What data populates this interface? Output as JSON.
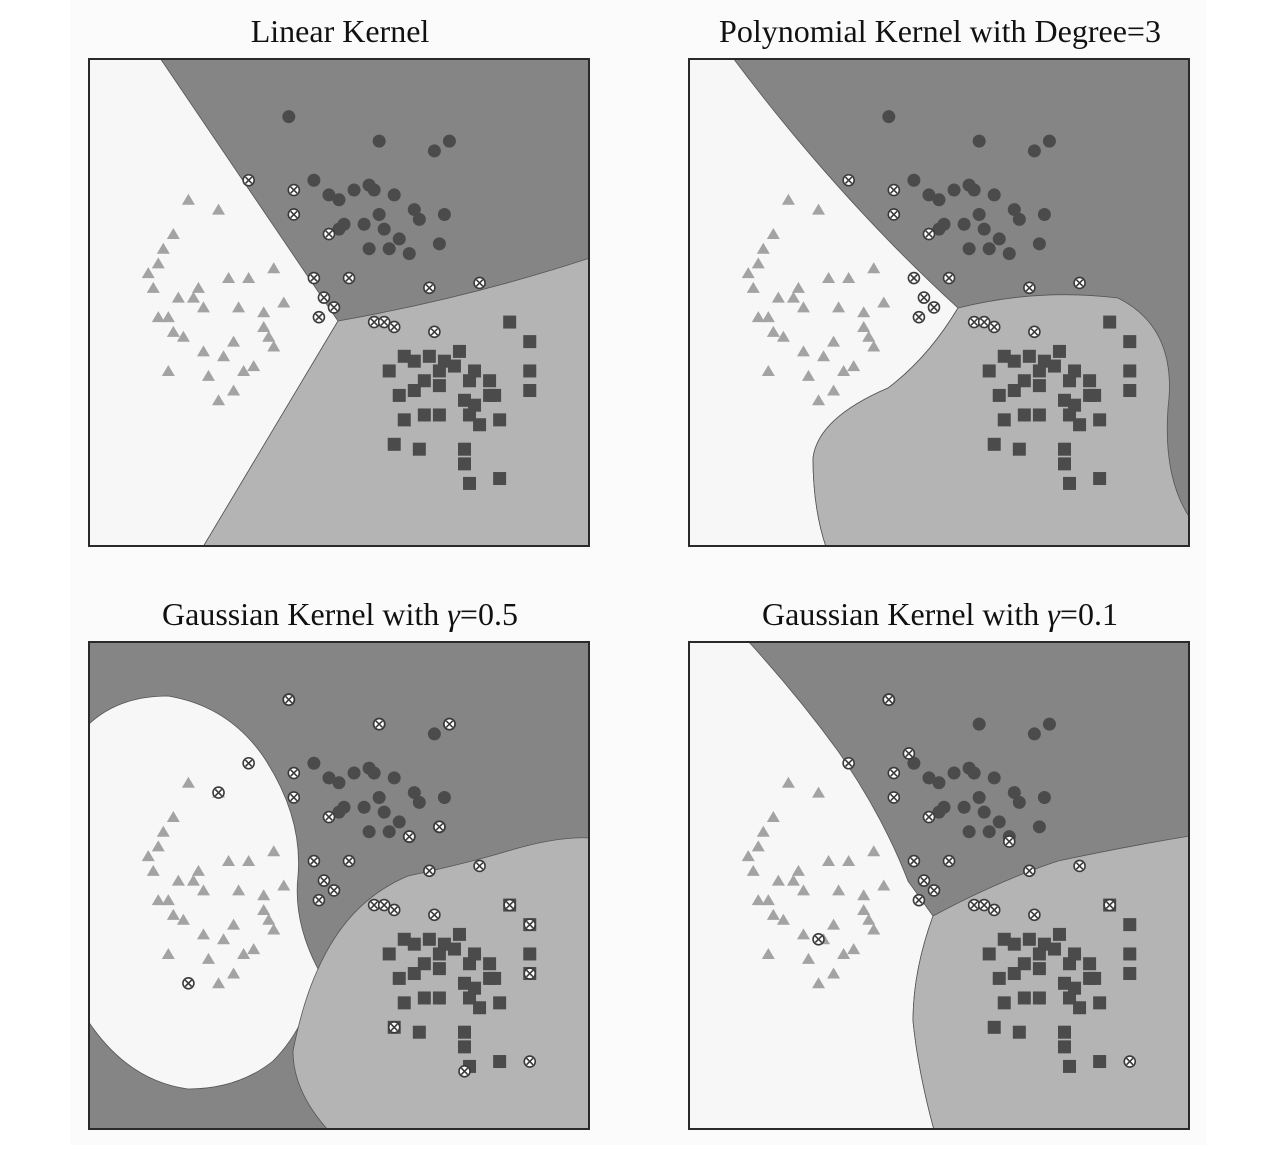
{
  "colors": {
    "region_triangle": "#f7f7f7",
    "region_circle": "#858585",
    "region_square": "#b4b4b4",
    "marker_triangle": "#a3a3a3",
    "marker_circle": "#4b4b4b",
    "marker_square": "#4b4b4b",
    "frame": "#2a2a2a"
  },
  "chart_data": [
    {
      "type": "scatter",
      "title": "Linear Kernel",
      "title_prefix": "Linear Kernel",
      "title_symbol": "",
      "title_suffix": "",
      "regions": "linear",
      "xlim": [
        0,
        10
      ],
      "ylim": [
        0,
        10
      ],
      "grid": false,
      "series": [
        {
          "class": "triangle",
          "x": [
            2.0,
            2.6,
            1.5,
            1.7,
            1.4,
            1.2,
            1.3,
            1.4,
            1.6,
            1.8,
            2.1,
            2.2,
            2.3,
            1.9,
            1.7,
            2.8,
            3.2,
            3.0,
            3.5,
            3.6,
            3.5,
            2.3,
            2.7,
            2.9,
            3.3,
            3.7,
            3.1,
            2.4,
            2.6,
            1.6,
            2.9,
            3.9,
            3.7
          ],
          "y": [
            7.1,
            6.9,
            6.1,
            6.4,
            5.8,
            5.6,
            5.3,
            4.7,
            4.7,
            5.1,
            5.1,
            5.3,
            4.9,
            4.3,
            4.4,
            5.5,
            5.5,
            4.9,
            4.8,
            4.3,
            4.5,
            4.0,
            3.9,
            4.2,
            3.7,
            4.1,
            3.6,
            3.5,
            3.0,
            3.6,
            3.2,
            5.0,
            5.7
          ]
        },
        {
          "class": "circle",
          "x": [
            4.0,
            5.8,
            6.9,
            7.2,
            4.5,
            4.8,
            5.0,
            5.3,
            5.6,
            5.7,
            6.1,
            6.5,
            6.6,
            5.0,
            5.1,
            5.5,
            5.8,
            6.2,
            7.1,
            5.6,
            6.4,
            5.9,
            6.0,
            7.0
          ],
          "y": [
            8.8,
            8.3,
            8.1,
            8.3,
            7.5,
            7.2,
            7.1,
            7.3,
            7.4,
            7.3,
            7.2,
            6.9,
            6.7,
            6.5,
            6.6,
            6.6,
            6.8,
            6.3,
            6.8,
            6.1,
            6.0,
            6.5,
            6.1,
            6.2
          ]
        },
        {
          "class": "square",
          "x": [
            8.4,
            8.8,
            6.3,
            6.5,
            6.8,
            7.1,
            7.4,
            7.3,
            7.0,
            6.0,
            6.7,
            7.0,
            7.6,
            7.7,
            8.0,
            8.1,
            7.5,
            7.7,
            8.0,
            6.2,
            6.5,
            6.3,
            6.7,
            7.0,
            7.6,
            7.8,
            8.2,
            8.8,
            8.8,
            6.1,
            6.6,
            7.5,
            7.5,
            7.6,
            8.2
          ],
          "y": [
            4.6,
            4.2,
            3.9,
            3.8,
            3.9,
            3.8,
            4.0,
            3.7,
            3.6,
            3.6,
            3.4,
            3.3,
            3.4,
            3.6,
            3.4,
            3.1,
            3.0,
            2.9,
            3.1,
            3.1,
            3.2,
            2.6,
            2.7,
            2.7,
            2.7,
            2.5,
            2.6,
            3.6,
            3.2,
            2.1,
            2.0,
            2.0,
            1.7,
            1.3,
            1.4
          ]
        },
        {
          "class": "support_vector",
          "x": [
            3.2,
            4.1,
            4.1,
            4.5,
            5.2,
            6.8,
            7.8,
            4.7,
            4.9,
            4.6,
            4.8,
            5.7,
            5.9,
            6.1,
            6.9
          ],
          "y": [
            7.5,
            7.3,
            6.8,
            5.5,
            5.5,
            5.3,
            5.4,
            5.1,
            4.9,
            4.7,
            6.4,
            4.6,
            4.6,
            4.5,
            4.4
          ]
        }
      ]
    },
    {
      "type": "scatter",
      "title": "Polynomial Kernel with Degree=3",
      "title_prefix": "Polynomial Kernel with Degree=3",
      "title_symbol": "",
      "title_suffix": "",
      "regions": "polynomial",
      "xlim": [
        0,
        10
      ],
      "ylim": [
        0,
        10
      ],
      "grid": false,
      "series": [
        {
          "class": "triangle",
          "x": [
            2.0,
            2.6,
            1.5,
            1.7,
            1.4,
            1.2,
            1.3,
            1.4,
            1.6,
            1.8,
            2.1,
            2.2,
            2.3,
            1.9,
            1.7,
            2.8,
            3.2,
            3.0,
            3.5,
            3.6,
            3.5,
            2.3,
            2.7,
            2.9,
            3.3,
            3.7,
            3.1,
            2.4,
            2.6,
            1.6,
            2.9,
            3.9,
            3.7
          ],
          "y": [
            7.1,
            6.9,
            6.1,
            6.4,
            5.8,
            5.6,
            5.3,
            4.7,
            4.7,
            5.1,
            5.1,
            5.3,
            4.9,
            4.3,
            4.4,
            5.5,
            5.5,
            4.9,
            4.8,
            4.3,
            4.5,
            4.0,
            3.9,
            4.2,
            3.7,
            4.1,
            3.6,
            3.5,
            3.0,
            3.6,
            3.2,
            5.0,
            5.7
          ]
        },
        {
          "class": "circle",
          "x": [
            4.0,
            5.8,
            6.9,
            7.2,
            4.5,
            4.8,
            5.0,
            5.3,
            5.6,
            5.7,
            6.1,
            6.5,
            6.6,
            5.0,
            5.1,
            5.5,
            5.8,
            6.2,
            7.1,
            5.6,
            6.4,
            5.9,
            6.0,
            7.0
          ],
          "y": [
            8.8,
            8.3,
            8.1,
            8.3,
            7.5,
            7.2,
            7.1,
            7.3,
            7.4,
            7.3,
            7.2,
            6.9,
            6.7,
            6.5,
            6.6,
            6.6,
            6.8,
            6.3,
            6.8,
            6.1,
            6.0,
            6.5,
            6.1,
            6.2
          ]
        },
        {
          "class": "square",
          "x": [
            8.4,
            8.8,
            6.3,
            6.5,
            6.8,
            7.1,
            7.4,
            7.3,
            7.0,
            6.0,
            6.7,
            7.0,
            7.6,
            7.7,
            8.0,
            8.1,
            7.5,
            7.7,
            8.0,
            6.2,
            6.5,
            6.3,
            6.7,
            7.0,
            7.6,
            7.8,
            8.2,
            8.8,
            8.8,
            6.1,
            6.6,
            7.5,
            7.5,
            7.6,
            8.2
          ],
          "y": [
            4.6,
            4.2,
            3.9,
            3.8,
            3.9,
            3.8,
            4.0,
            3.7,
            3.6,
            3.6,
            3.4,
            3.3,
            3.4,
            3.6,
            3.4,
            3.1,
            3.0,
            2.9,
            3.1,
            3.1,
            3.2,
            2.6,
            2.7,
            2.7,
            2.7,
            2.5,
            2.6,
            3.6,
            3.2,
            2.1,
            2.0,
            2.0,
            1.7,
            1.3,
            1.4
          ]
        },
        {
          "class": "support_vector",
          "x": [
            3.2,
            4.1,
            4.1,
            4.5,
            5.2,
            6.8,
            7.8,
            4.7,
            4.9,
            4.6,
            4.8,
            5.7,
            5.9,
            6.1,
            6.9
          ],
          "y": [
            7.5,
            7.3,
            6.8,
            5.5,
            5.5,
            5.3,
            5.4,
            5.1,
            4.9,
            4.7,
            6.4,
            4.6,
            4.6,
            4.5,
            4.4
          ]
        }
      ]
    },
    {
      "type": "scatter",
      "title": "Gaussian Kernel with γ=0.5",
      "title_prefix": "Gaussian Kernel with ",
      "title_symbol": "γ",
      "title_suffix": "=0.5",
      "regions": "gaussian_0.5",
      "xlim": [
        0,
        10
      ],
      "ylim": [
        0,
        10
      ],
      "grid": false,
      "series": [
        {
          "class": "triangle",
          "x": [
            2.0,
            2.6,
            1.5,
            1.7,
            1.4,
            1.2,
            1.3,
            1.4,
            1.6,
            1.8,
            2.1,
            2.2,
            2.3,
            1.9,
            1.7,
            2.8,
            3.2,
            3.0,
            3.5,
            3.6,
            3.5,
            2.3,
            2.7,
            2.9,
            3.3,
            3.7,
            3.1,
            2.4,
            2.6,
            1.6,
            2.9,
            3.9,
            3.7
          ],
          "y": [
            7.1,
            6.9,
            6.1,
            6.4,
            5.8,
            5.6,
            5.3,
            4.7,
            4.7,
            5.1,
            5.1,
            5.3,
            4.9,
            4.3,
            4.4,
            5.5,
            5.5,
            4.9,
            4.8,
            4.3,
            4.5,
            4.0,
            3.9,
            4.2,
            3.7,
            4.1,
            3.6,
            3.5,
            3.0,
            3.6,
            3.2,
            5.0,
            5.7
          ]
        },
        {
          "class": "circle",
          "x": [
            4.0,
            5.8,
            6.9,
            7.2,
            4.5,
            4.8,
            5.0,
            5.3,
            5.6,
            5.7,
            6.1,
            6.5,
            6.6,
            5.0,
            5.1,
            5.5,
            5.8,
            6.2,
            7.1,
            5.6,
            6.4,
            5.9,
            6.0,
            7.0
          ],
          "y": [
            8.8,
            8.3,
            8.1,
            8.3,
            7.5,
            7.2,
            7.1,
            7.3,
            7.4,
            7.3,
            7.2,
            6.9,
            6.7,
            6.5,
            6.6,
            6.6,
            6.8,
            6.3,
            6.8,
            6.1,
            6.0,
            6.5,
            6.1,
            6.2
          ]
        },
        {
          "class": "square",
          "x": [
            8.4,
            8.8,
            6.3,
            6.5,
            6.8,
            7.1,
            7.4,
            7.3,
            7.0,
            6.0,
            6.7,
            7.0,
            7.6,
            7.7,
            8.0,
            8.1,
            7.5,
            7.7,
            8.0,
            6.2,
            6.5,
            6.3,
            6.7,
            7.0,
            7.6,
            7.8,
            8.2,
            8.8,
            8.8,
            6.1,
            6.6,
            7.5,
            7.5,
            7.6,
            8.2
          ],
          "y": [
            4.6,
            4.2,
            3.9,
            3.8,
            3.9,
            3.8,
            4.0,
            3.7,
            3.6,
            3.6,
            3.4,
            3.3,
            3.4,
            3.6,
            3.4,
            3.1,
            3.0,
            2.9,
            3.1,
            3.1,
            3.2,
            2.6,
            2.7,
            2.7,
            2.7,
            2.5,
            2.6,
            3.6,
            3.2,
            2.1,
            2.0,
            2.0,
            1.7,
            1.3,
            1.4
          ]
        },
        {
          "class": "support_vector",
          "x": [
            4.0,
            5.8,
            7.2,
            3.2,
            4.1,
            4.1,
            4.5,
            6.4,
            7.0,
            5.2,
            6.8,
            7.8,
            4.7,
            4.9,
            4.6,
            4.8,
            5.7,
            5.9,
            6.1,
            6.9,
            8.4,
            8.8,
            8.8,
            6.1,
            8.8,
            7.5,
            2.6,
            2.0
          ],
          "y": [
            8.8,
            8.3,
            8.3,
            7.5,
            7.3,
            6.8,
            5.5,
            6.0,
            6.2,
            5.5,
            5.3,
            5.4,
            5.1,
            4.9,
            4.7,
            6.4,
            4.6,
            4.6,
            4.5,
            4.4,
            4.6,
            4.2,
            3.2,
            2.1,
            1.4,
            1.2,
            6.9,
            3.0
          ]
        }
      ]
    },
    {
      "type": "scatter",
      "title": "Gaussian Kernel with γ=0.1",
      "title_prefix": "Gaussian Kernel with ",
      "title_symbol": "γ",
      "title_suffix": "=0.1",
      "regions": "gaussian_0.1",
      "xlim": [
        0,
        10
      ],
      "ylim": [
        0,
        10
      ],
      "grid": false,
      "series": [
        {
          "class": "triangle",
          "x": [
            2.0,
            2.6,
            1.5,
            1.7,
            1.4,
            1.2,
            1.3,
            1.4,
            1.6,
            1.8,
            2.1,
            2.2,
            2.3,
            1.9,
            1.7,
            2.8,
            3.2,
            3.0,
            3.5,
            3.6,
            3.5,
            2.3,
            2.7,
            2.9,
            3.3,
            3.7,
            3.1,
            2.4,
            2.6,
            1.6,
            2.9,
            3.9,
            3.7
          ],
          "y": [
            7.1,
            6.9,
            6.1,
            6.4,
            5.8,
            5.6,
            5.3,
            4.7,
            4.7,
            5.1,
            5.1,
            5.3,
            4.9,
            4.3,
            4.4,
            5.5,
            5.5,
            4.9,
            4.8,
            4.3,
            4.5,
            4.0,
            3.9,
            4.2,
            3.7,
            4.1,
            3.6,
            3.5,
            3.0,
            3.6,
            3.2,
            5.0,
            5.7
          ]
        },
        {
          "class": "circle",
          "x": [
            4.0,
            5.8,
            6.9,
            7.2,
            4.5,
            4.8,
            5.0,
            5.3,
            5.6,
            5.7,
            6.1,
            6.5,
            6.6,
            5.0,
            5.1,
            5.5,
            5.8,
            6.2,
            7.1,
            5.6,
            6.4,
            5.9,
            6.0,
            7.0
          ],
          "y": [
            8.8,
            8.3,
            8.1,
            8.3,
            7.5,
            7.2,
            7.1,
            7.3,
            7.4,
            7.3,
            7.2,
            6.9,
            6.7,
            6.5,
            6.6,
            6.6,
            6.8,
            6.3,
            6.8,
            6.1,
            6.0,
            6.5,
            6.1,
            6.2
          ]
        },
        {
          "class": "square",
          "x": [
            8.4,
            8.8,
            6.3,
            6.5,
            6.8,
            7.1,
            7.4,
            7.3,
            7.0,
            6.0,
            6.7,
            7.0,
            7.6,
            7.7,
            8.0,
            8.1,
            7.5,
            7.7,
            8.0,
            6.2,
            6.5,
            6.3,
            6.7,
            7.0,
            7.6,
            7.8,
            8.2,
            8.8,
            8.8,
            6.1,
            6.6,
            7.5,
            7.5,
            7.6,
            8.2
          ],
          "y": [
            4.6,
            4.2,
            3.9,
            3.8,
            3.9,
            3.8,
            4.0,
            3.7,
            3.6,
            3.6,
            3.4,
            3.3,
            3.4,
            3.6,
            3.4,
            3.1,
            3.0,
            2.9,
            3.1,
            3.1,
            3.2,
            2.6,
            2.7,
            2.7,
            2.7,
            2.5,
            2.6,
            3.6,
            3.2,
            2.1,
            2.0,
            2.0,
            1.7,
            1.3,
            1.4
          ]
        },
        {
          "class": "support_vector",
          "x": [
            4.0,
            3.2,
            4.4,
            4.1,
            4.1,
            4.5,
            5.2,
            6.4,
            6.8,
            7.8,
            4.7,
            4.9,
            4.6,
            4.8,
            5.7,
            5.9,
            6.1,
            6.9,
            8.4,
            2.6,
            8.8
          ],
          "y": [
            8.8,
            7.5,
            7.7,
            7.3,
            6.8,
            5.5,
            5.5,
            5.9,
            5.3,
            5.4,
            5.1,
            4.9,
            4.7,
            6.4,
            4.6,
            4.6,
            4.5,
            4.4,
            4.6,
            3.9,
            1.4
          ]
        }
      ]
    }
  ]
}
